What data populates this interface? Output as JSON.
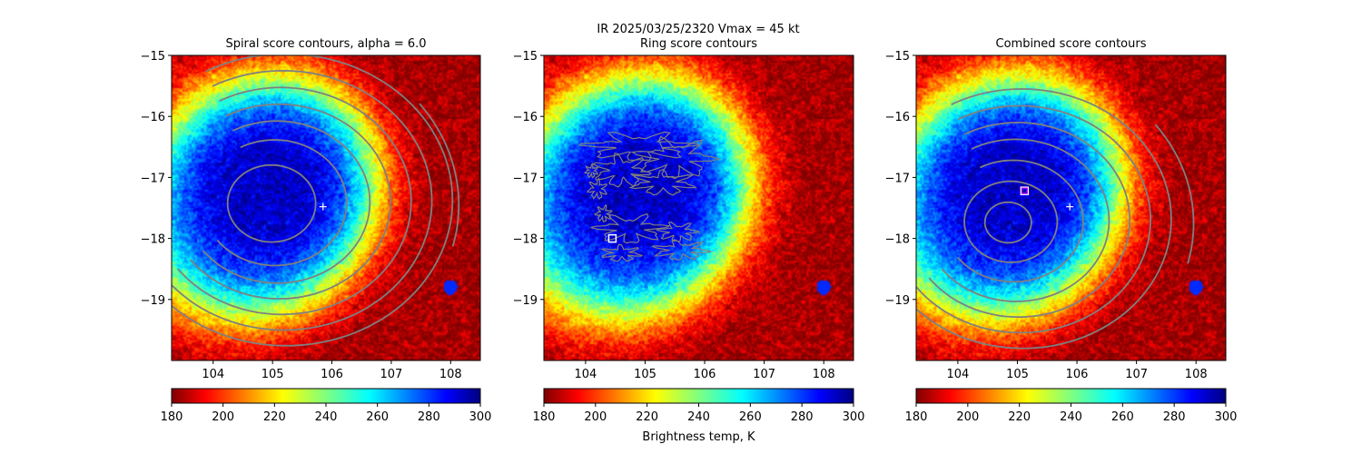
{
  "suptitle": {
    "line1": "IR  2025/03/25/2320    Vmax = 45 kt",
    "line2": ""
  },
  "chart_data": [
    {
      "type": "heatmap",
      "title": "Spiral score contours, alpha =  6.0",
      "xlim": [
        103.3,
        108.5
      ],
      "ylim": [
        -20.0,
        -15.0
      ],
      "xticks": [
        104,
        105,
        106,
        107,
        108
      ],
      "xtick_labels": [
        "104",
        "105",
        "106",
        "107",
        "108"
      ],
      "yticks": [
        -15,
        -16,
        -17,
        -18,
        -19
      ],
      "ytick_labels": [
        "−15",
        "−16",
        "−17",
        "−18",
        "−19"
      ],
      "field": {
        "center": [
          105.0,
          -17.2
        ],
        "scale": 0.71,
        "min_temp": 188,
        "max_temp": 296
      },
      "contours": "spiral",
      "spiral_center": [
        104.6,
        -17.6
      ],
      "spiral_radii": [
        0.95,
        1.55,
        2.0,
        2.4,
        2.8,
        3.2,
        3.6
      ],
      "extra_arcs": [
        {
          "center": [
            104.6,
            -17.6
          ],
          "radius": 4.15
        }
      ],
      "best_track": {
        "x": 105.85,
        "y": -17.48,
        "marker": "+",
        "color": "#ffffff"
      },
      "marker": null,
      "colorbar": {
        "label": "",
        "ticks": [
          180,
          200,
          220,
          240,
          260,
          280,
          300
        ],
        "tick_labels": [
          "180",
          "200",
          "220",
          "240",
          "260",
          "280",
          "300"
        ],
        "range": [
          180,
          300
        ]
      }
    },
    {
      "type": "heatmap",
      "title": "Ring score contours",
      "xlim": [
        103.3,
        108.5
      ],
      "ylim": [
        -20.0,
        -15.0
      ],
      "xticks": [
        104,
        105,
        106,
        107,
        108
      ],
      "xtick_labels": [
        "104",
        "105",
        "106",
        "107",
        "108"
      ],
      "yticks": [
        -15,
        -16,
        -17,
        -18,
        -19
      ],
      "ytick_labels": [
        "−15",
        "−16",
        "−17",
        "−18",
        "−19"
      ],
      "field": {
        "center": [
          105.0,
          -17.2
        ],
        "scale": 0.71,
        "min_temp": 188,
        "max_temp": 296
      },
      "contours": "ring",
      "best_track": null,
      "marker": {
        "x": 104.45,
        "y": -18.0,
        "shape": "square",
        "color": "#ffffff"
      },
      "colorbar": {
        "label": "Brightness temp, K",
        "ticks": [
          180,
          200,
          220,
          240,
          260,
          280,
          300
        ],
        "tick_labels": [
          "180",
          "200",
          "220",
          "240",
          "260",
          "280",
          "300"
        ],
        "range": [
          180,
          300
        ]
      }
    },
    {
      "type": "heatmap",
      "title": "Combined score contours",
      "xlim": [
        103.3,
        108.5
      ],
      "ylim": [
        -20.0,
        -15.0
      ],
      "xticks": [
        104,
        105,
        106,
        107,
        108
      ],
      "xtick_labels": [
        "104",
        "105",
        "106",
        "107",
        "108"
      ],
      "yticks": [
        -15,
        -16,
        -17,
        -18,
        -19
      ],
      "ytick_labels": [
        "−15",
        "−16",
        "−17",
        "−18",
        "−19"
      ],
      "field": {
        "center": [
          105.0,
          -17.2
        ],
        "scale": 0.71,
        "min_temp": 188,
        "max_temp": 296
      },
      "contours": "combined",
      "spiral_center": [
        104.5,
        -17.9
      ],
      "spiral_radii": [
        0.5,
        1.0,
        1.5,
        2.0,
        2.4,
        2.8,
        3.2
      ],
      "extra_arcs": [
        {
          "center": [
            104.5,
            -17.9
          ],
          "radius": 4.05
        }
      ],
      "best_track": {
        "x": 105.88,
        "y": -17.48,
        "marker": "+",
        "color": "#ffffff"
      },
      "marker": {
        "x": 105.12,
        "y": -17.22,
        "shape": "square",
        "color": "#cc00ff"
      },
      "colorbar": {
        "label": "",
        "ticks": [
          180,
          200,
          220,
          240,
          260,
          280,
          300
        ],
        "tick_labels": [
          "180",
          "200",
          "220",
          "240",
          "260",
          "280",
          "300"
        ],
        "range": [
          180,
          300
        ]
      }
    }
  ]
}
